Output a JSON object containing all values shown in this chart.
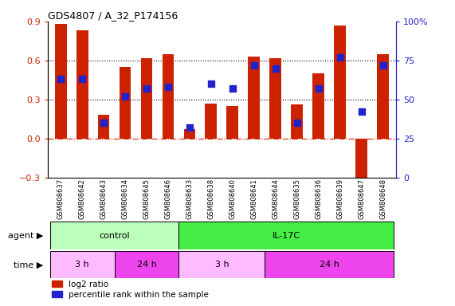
{
  "title": "GDS4807 / A_32_P174156",
  "samples": [
    "GSM808637",
    "GSM808642",
    "GSM808643",
    "GSM808634",
    "GSM808645",
    "GSM808646",
    "GSM808633",
    "GSM808638",
    "GSM808640",
    "GSM808641",
    "GSM808644",
    "GSM808635",
    "GSM808636",
    "GSM808639",
    "GSM808647",
    "GSM808648"
  ],
  "log2_ratio": [
    0.88,
    0.83,
    0.18,
    0.55,
    0.62,
    0.65,
    0.07,
    0.27,
    0.25,
    0.63,
    0.62,
    0.26,
    0.5,
    0.87,
    -0.35,
    0.65
  ],
  "percentile": [
    63,
    63,
    35,
    52,
    57,
    58,
    32,
    60,
    57,
    72,
    70,
    35,
    57,
    77,
    42,
    72
  ],
  "bar_color": "#cc2200",
  "dot_color": "#2222cc",
  "ylim_left": [
    -0.3,
    0.9
  ],
  "ylim_right": [
    0,
    100
  ],
  "yticks_left": [
    -0.3,
    0.0,
    0.3,
    0.6,
    0.9
  ],
  "yticks_right": [
    0,
    25,
    50,
    75,
    100
  ],
  "hline_dotted": [
    0.3,
    0.6
  ],
  "hline_dash": 0.0,
  "agent_groups": [
    {
      "label": "control",
      "start": 0,
      "end": 6,
      "color": "#bbffbb"
    },
    {
      "label": "IL-17C",
      "start": 6,
      "end": 16,
      "color": "#44ee44"
    }
  ],
  "time_groups": [
    {
      "label": "3 h",
      "start": 0,
      "end": 3,
      "color": "#ffbbff"
    },
    {
      "label": "24 h",
      "start": 3,
      "end": 6,
      "color": "#ee44ee"
    },
    {
      "label": "3 h",
      "start": 6,
      "end": 10,
      "color": "#ffbbff"
    },
    {
      "label": "24 h",
      "start": 10,
      "end": 16,
      "color": "#ee44ee"
    }
  ],
  "legend_log2_label": "log2 ratio",
  "legend_pct_label": "percentile rank within the sample",
  "agent_label": "agent",
  "time_label": "time",
  "background_color": "#ffffff"
}
